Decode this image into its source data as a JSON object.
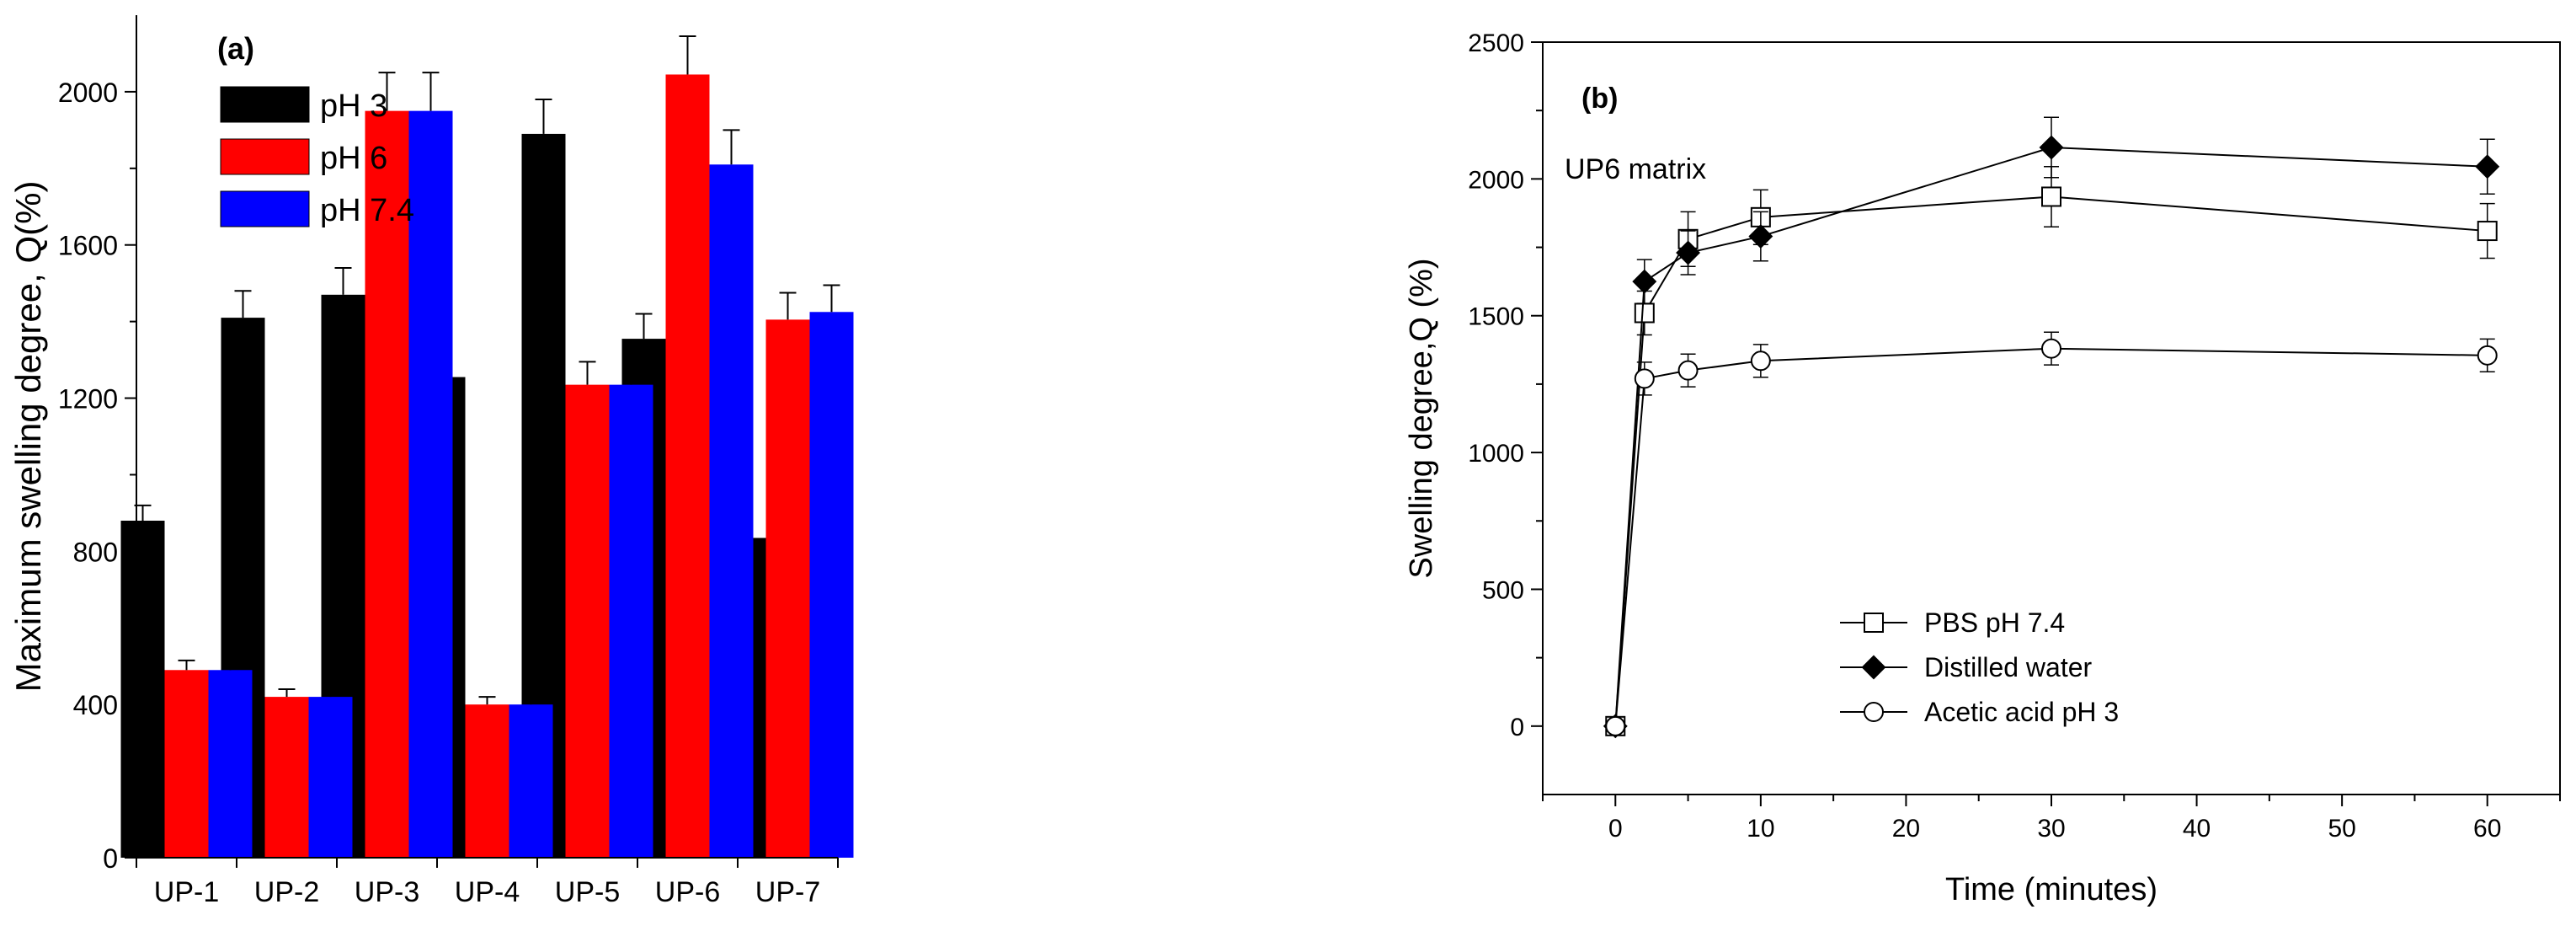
{
  "chart_data": [
    {
      "type": "bar",
      "panel_label": "(a)",
      "ylabel": "Maximum swelling degree, Q(%)",
      "xlabel": "",
      "ylim": [
        0,
        2200
      ],
      "yticks": [
        0,
        400,
        800,
        1200,
        1600,
        2000
      ],
      "legend_position": "top-left",
      "categories": [
        "UP-1",
        "UP-2",
        "UP-3",
        "UP-4",
        "UP-5",
        "UP-6",
        "UP-7"
      ],
      "series": [
        {
          "name": "pH 3",
          "color": "#000000",
          "values": [
            880,
            1410,
            1470,
            1255,
            1890,
            1355,
            835
          ],
          "errors": [
            40,
            70,
            70,
            60,
            90,
            65,
            40
          ]
        },
        {
          "name": "pH 6",
          "color": "#ff0000",
          "values": [
            490,
            420,
            1950,
            400,
            1235,
            2045,
            1405
          ],
          "errors": [
            25,
            20,
            100,
            20,
            60,
            100,
            70
          ]
        },
        {
          "name": "pH 7.4",
          "color": "#0000ff",
          "values": [
            490,
            420,
            1950,
            400,
            1235,
            1810,
            1425
          ],
          "errors": [
            25,
            20,
            100,
            20,
            60,
            90,
            70
          ]
        }
      ]
    },
    {
      "type": "line",
      "panel_label": "(b)",
      "annotation": "UP6 matrix",
      "xlabel": "Time (minutes)",
      "ylabel": "Swelling degree,Q (%)",
      "xlim": [
        -5,
        65
      ],
      "ylim": [
        -250,
        2500
      ],
      "xticks": [
        0,
        10,
        20,
        30,
        40,
        50,
        60
      ],
      "yticks": [
        0,
        500,
        1000,
        1500,
        2000,
        2500
      ],
      "legend_position": "lower-center",
      "series": [
        {
          "name": "PBS pH 7.4",
          "marker": "open-square",
          "x": [
            0,
            2,
            5,
            10,
            30,
            60
          ],
          "y": [
            0,
            1510,
            1780,
            1860,
            1935,
            1810
          ],
          "errors": [
            20,
            80,
            100,
            100,
            110,
            100
          ]
        },
        {
          "name": "Distilled water",
          "marker": "filled-diamond",
          "x": [
            0,
            2,
            5,
            10,
            30,
            60
          ],
          "y": [
            0,
            1625,
            1730,
            1790,
            2115,
            2045
          ],
          "errors": [
            20,
            80,
            80,
            90,
            110,
            100
          ]
        },
        {
          "name": "Acetic acid pH 3",
          "marker": "open-circle",
          "x": [
            0,
            2,
            5,
            10,
            30,
            60
          ],
          "y": [
            0,
            1270,
            1300,
            1335,
            1380,
            1355
          ],
          "errors": [
            20,
            60,
            60,
            60,
            60,
            60
          ]
        }
      ]
    }
  ]
}
